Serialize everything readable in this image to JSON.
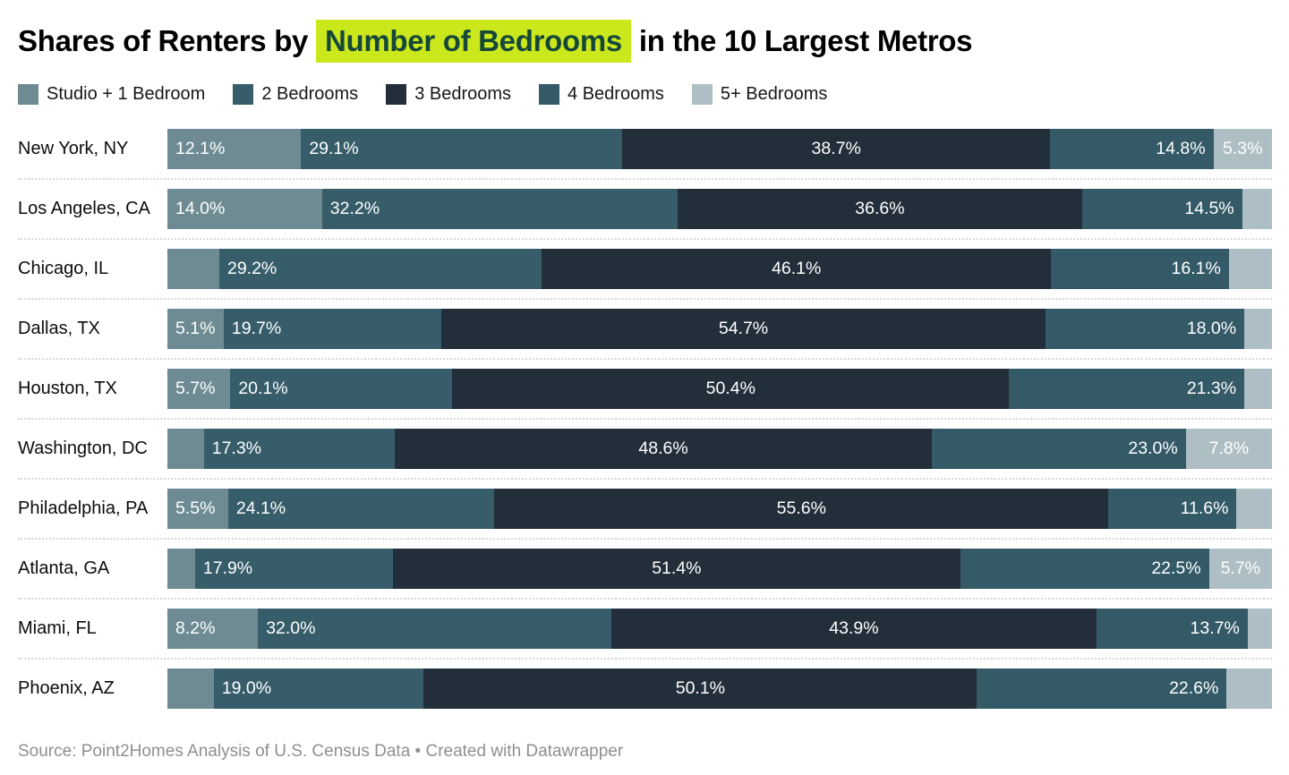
{
  "title": {
    "pre": "Shares of Renters by ",
    "highlight": "Number of Bedrooms",
    "post": " in the 10 Largest Metros",
    "highlight_bg": "#cbe81c",
    "highlight_text_color": "#16483a"
  },
  "footer": {
    "text": "Source: Point2Homes Analysis of U.S. Census Data • Created with Datawrapper"
  },
  "chart_data": {
    "type": "bar",
    "stacked": true,
    "orientation": "horizontal",
    "unit": "%",
    "xlim": [
      0,
      100
    ],
    "grid": false,
    "legend_position": "top",
    "title": "Shares of Renters by Number of Bedrooms in the 10 Largest Metros",
    "categories": [
      "New York, NY",
      "Los Angeles, CA",
      "Chicago, IL",
      "Dallas, TX",
      "Houston, TX",
      "Washington, DC",
      "Philadelphia, PA",
      "Atlanta, GA",
      "Miami, FL",
      "Phoenix, AZ"
    ],
    "series": [
      {
        "name": "Studio + 1 Bedroom",
        "color": "#6e8b94",
        "values": [
          12.1,
          14.0,
          4.7,
          5.1,
          5.7,
          3.3,
          5.5,
          2.5,
          8.2,
          4.2
        ],
        "labels": [
          "12.1%",
          "14.0%",
          "",
          "5.1%",
          "5.7%",
          "",
          "5.5%",
          "",
          "8.2%",
          ""
        ]
      },
      {
        "name": "2 Bedrooms",
        "color": "#375d6a",
        "values": [
          29.1,
          32.2,
          29.2,
          19.7,
          20.1,
          17.3,
          24.1,
          17.9,
          32.0,
          19.0
        ],
        "labels": [
          "29.1%",
          "32.2%",
          "29.2%",
          "19.7%",
          "20.1%",
          "17.3%",
          "24.1%",
          "17.9%",
          "32.0%",
          "19.0%"
        ]
      },
      {
        "name": "3 Bedrooms",
        "color": "#222f3b",
        "values": [
          38.7,
          36.6,
          46.1,
          54.7,
          50.4,
          48.6,
          55.6,
          51.4,
          43.9,
          50.1
        ],
        "labels": [
          "38.7%",
          "36.6%",
          "46.1%",
          "54.7%",
          "50.4%",
          "48.6%",
          "55.6%",
          "51.4%",
          "43.9%",
          "50.1%"
        ]
      },
      {
        "name": "4 Bedrooms",
        "color": "#345a67",
        "values": [
          14.8,
          14.5,
          16.1,
          18.0,
          21.3,
          23.0,
          11.6,
          22.5,
          13.7,
          22.6
        ],
        "labels": [
          "14.8%",
          "14.5%",
          "16.1%",
          "18.0%",
          "21.3%",
          "23.0%",
          "11.6%",
          "22.5%",
          "13.7%",
          "22.6%"
        ]
      },
      {
        "name": "5+ Bedrooms",
        "color": "#adbec4",
        "values": [
          5.3,
          2.7,
          3.9,
          2.5,
          2.5,
          7.8,
          3.2,
          5.7,
          2.2,
          4.1
        ],
        "labels": [
          "5.3%",
          "",
          "",
          "",
          "",
          "7.8%",
          "",
          "5.7%",
          "",
          ""
        ]
      }
    ]
  }
}
